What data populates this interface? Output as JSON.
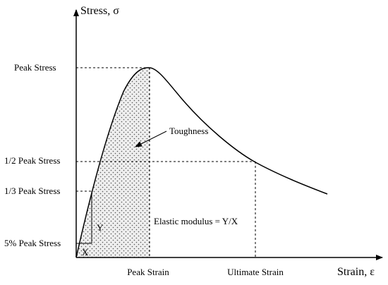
{
  "axes": {
    "y_label": "Stress, σ",
    "x_label": "Strain, ε"
  },
  "y_levels": [
    "Peak Stress",
    "1/2 Peak Stress",
    "1/3 Peak Stress",
    "5% Peak Stress"
  ],
  "x_levels": [
    "Peak Strain",
    "Ultimate Strain"
  ],
  "annotations": {
    "toughness": "Toughness",
    "modulus": "Elastic modulus = Y/X",
    "rise": "Y",
    "run": "X"
  }
}
